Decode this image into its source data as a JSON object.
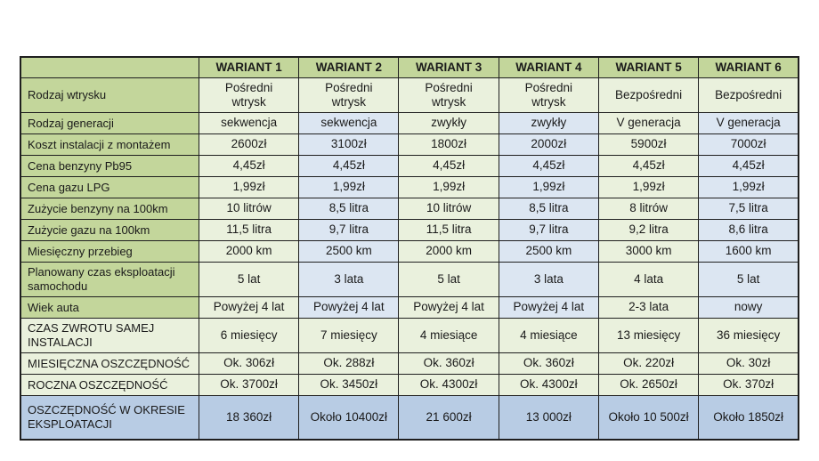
{
  "colors": {
    "header_green": "#c3d69b",
    "light_green": "#eaf1dd",
    "light_blue": "#dce6f2",
    "savings_blue": "#b8cce4",
    "border": "#1f1f1f",
    "text": "#1a1a1a"
  },
  "chart_data": {
    "type": "table",
    "title": "",
    "columns": [
      "WARIANT 1",
      "WARIANT 2",
      "WARIANT 3",
      "WARIANT 4",
      "WARIANT 5",
      "WARIANT 6"
    ],
    "rows": [
      {
        "label": "Rodzaj wtrysku",
        "values": [
          "Pośredni wtrysk",
          "Pośredni wtrysk",
          "Pośredni wtrysk",
          "Pośredni wtrysk",
          "Bezpośredni",
          "Bezpośredni"
        ]
      },
      {
        "label": "Rodzaj generacji",
        "values": [
          "sekwencja",
          "sekwencja",
          "zwykły",
          "zwykły",
          "V generacja",
          "V generacja"
        ]
      },
      {
        "label": "Koszt instalacji z montażem",
        "values": [
          "2600zł",
          "3100zł",
          "1800zł",
          "2000zł",
          "5900zł",
          "7000zł"
        ]
      },
      {
        "label": "Cena benzyny Pb95",
        "values": [
          "4,45zł",
          "4,45zł",
          "4,45zł",
          "4,45zł",
          "4,45zł",
          "4,45zł"
        ]
      },
      {
        "label": "Cena gazu LPG",
        "values": [
          "1,99zł",
          "1,99zł",
          "1,99zł",
          "1,99zł",
          "1,99zł",
          "1,99zł"
        ]
      },
      {
        "label": "Zużycie benzyny na 100km",
        "values": [
          "10 litrów",
          "8,5 litra",
          "10 litrów",
          "8,5 litra",
          "8 litrów",
          "7,5 litra"
        ]
      },
      {
        "label": "Zużycie gazu na 100km",
        "values": [
          "11,5 litra",
          "9,7 litra",
          "11,5 litra",
          "9,7 litra",
          "9,2 litra",
          "8,6 litra"
        ]
      },
      {
        "label": "Miesięczny przebieg",
        "values": [
          "2000 km",
          "2500 km",
          "2000 km",
          "2500 km",
          "3000 km",
          "1600 km"
        ]
      },
      {
        "label": "Planowany czas eksploatacji samochodu",
        "values": [
          "5 lat",
          "3 lata",
          "5 lat",
          "3 lata",
          "4 lata",
          "5 lat"
        ]
      },
      {
        "label": "Wiek auta",
        "values": [
          "Powyżej 4 lat",
          "Powyżej 4 lat",
          "Powyżej 4 lat",
          "Powyżej 4 lat",
          "2-3 lata",
          "nowy"
        ]
      },
      {
        "label": "CZAS ZWROTU SAMEJ INSTALACJI",
        "values": [
          "6 miesięcy",
          "7 miesięcy",
          "4 miesiące",
          "4 miesiące",
          "13 miesięcy",
          "36 miesięcy"
        ]
      },
      {
        "label": "MIESIĘCZNA OSZCZĘDNOŚĆ",
        "values": [
          "Ok. 306zł",
          "Ok. 288zł",
          "Ok. 360zł",
          "Ok. 360zł",
          "Ok. 220zł",
          "Ok. 30zł"
        ]
      },
      {
        "label": "ROCZNA OSZCZĘDNOŚĆ",
        "values": [
          "Ok. 3700zł",
          "Ok. 3450zł",
          "Ok. 4300zł",
          "Ok. 4300zł",
          "Ok. 2650zł",
          "Ok. 370zł"
        ]
      },
      {
        "label": "OSZCZĘDNOŚĆ W OKRESIE EKSPLOATACJI",
        "values": [
          "18 360zł",
          "Około 10400zł",
          "21 600zł",
          "13 000zł",
          "Około 10 500zł",
          "Około 1850zł"
        ]
      }
    ]
  }
}
